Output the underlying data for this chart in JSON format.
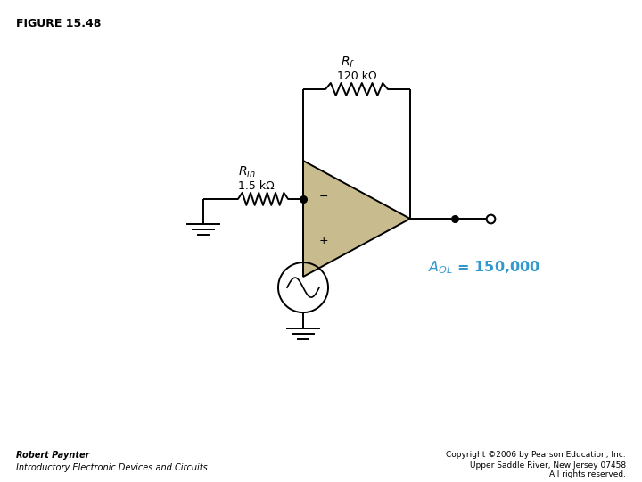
{
  "title": "FIGURE 15.48",
  "title_fontsize": 9,
  "background_color": "#ffffff",
  "line_color": "#000000",
  "component_color": "#c8bb8e",
  "text_color_cyan": "#3399cc",
  "Rf_label": "$R_f$",
  "Rf_value": "120 kΩ",
  "Rin_label": "$R_{in}$",
  "Rin_value": "1.5 kΩ",
  "aol_text_A": "$A$",
  "aol_label": "$A_{OL}$ = 150,000",
  "minus_label": "−",
  "plus_label": "+",
  "left_author": "Robert Paynter",
  "left_book": "Introductory Electronic Devices and Circuits",
  "right_copy1": "Copyright ©2006 by Pearson Education, Inc.",
  "right_copy2": "Upper Saddle River, New Jersey 07458",
  "right_copy3": "All rights reserved."
}
